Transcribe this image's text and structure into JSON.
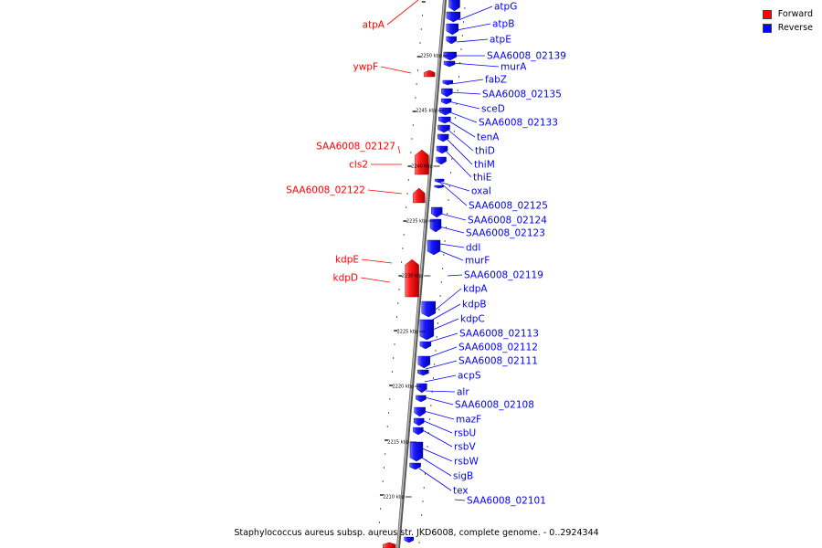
{
  "legend": {
    "forward_label": "Forward",
    "reverse_label": "Reverse",
    "forward_color": "#ff0000",
    "reverse_color": "#0000ff"
  },
  "caption": "Staphylococcus aureus subsp. aureus str. JKD6008, complete genome. - 0..2924344",
  "colors": {
    "forward": "#ff0000",
    "reverse": "#0000ff",
    "backbone": "#8a8a8a"
  },
  "scale_unit": "kbp",
  "scale_ticks": [
    2250,
    2245,
    2240,
    2235,
    2230,
    2225,
    2220,
    2215,
    2210
  ],
  "genes": [
    {
      "name": "atpA",
      "strand": "forward"
    },
    {
      "name": "atpG",
      "strand": "reverse"
    },
    {
      "name": "atpB",
      "strand": "reverse"
    },
    {
      "name": "atpE",
      "strand": "reverse"
    },
    {
      "name": "SAA6008_02139",
      "strand": "reverse"
    },
    {
      "name": "murA",
      "strand": "reverse"
    },
    {
      "name": "ywpF",
      "strand": "forward"
    },
    {
      "name": "fabZ",
      "strand": "reverse"
    },
    {
      "name": "SAA6008_02135",
      "strand": "reverse"
    },
    {
      "name": "sceD",
      "strand": "reverse"
    },
    {
      "name": "SAA6008_02133",
      "strand": "reverse"
    },
    {
      "name": "tenA",
      "strand": "reverse"
    },
    {
      "name": "SAA6008_02127",
      "strand": "forward"
    },
    {
      "name": "thiD",
      "strand": "reverse"
    },
    {
      "name": "cls2",
      "strand": "forward"
    },
    {
      "name": "thiM",
      "strand": "reverse"
    },
    {
      "name": "thiE",
      "strand": "reverse"
    },
    {
      "name": "SAA6008_02122",
      "strand": "forward"
    },
    {
      "name": "oxaI",
      "strand": "reverse"
    },
    {
      "name": "SAA6008_02125",
      "strand": "reverse"
    },
    {
      "name": "SAA6008_02124",
      "strand": "reverse"
    },
    {
      "name": "SAA6008_02123",
      "strand": "reverse"
    },
    {
      "name": "ddl",
      "strand": "reverse"
    },
    {
      "name": "murF",
      "strand": "reverse"
    },
    {
      "name": "kdpE",
      "strand": "forward"
    },
    {
      "name": "kdpD",
      "strand": "forward"
    },
    {
      "name": "SAA6008_02119",
      "strand": "reverse"
    },
    {
      "name": "kdpA",
      "strand": "reverse"
    },
    {
      "name": "kdpB",
      "strand": "reverse"
    },
    {
      "name": "kdpC",
      "strand": "reverse"
    },
    {
      "name": "SAA6008_02113",
      "strand": "reverse"
    },
    {
      "name": "SAA6008_02112",
      "strand": "reverse"
    },
    {
      "name": "SAA6008_02111",
      "strand": "reverse"
    },
    {
      "name": "acpS",
      "strand": "reverse"
    },
    {
      "name": "alr",
      "strand": "reverse"
    },
    {
      "name": "SAA6008_02108",
      "strand": "reverse"
    },
    {
      "name": "mazF",
      "strand": "reverse"
    },
    {
      "name": "rsbU",
      "strand": "reverse"
    },
    {
      "name": "rsbV",
      "strand": "reverse"
    },
    {
      "name": "rsbW",
      "strand": "reverse"
    },
    {
      "name": "sigB",
      "strand": "reverse"
    },
    {
      "name": "tex",
      "strand": "reverse"
    },
    {
      "name": "SAA6008_02101",
      "strand": "reverse"
    }
  ]
}
